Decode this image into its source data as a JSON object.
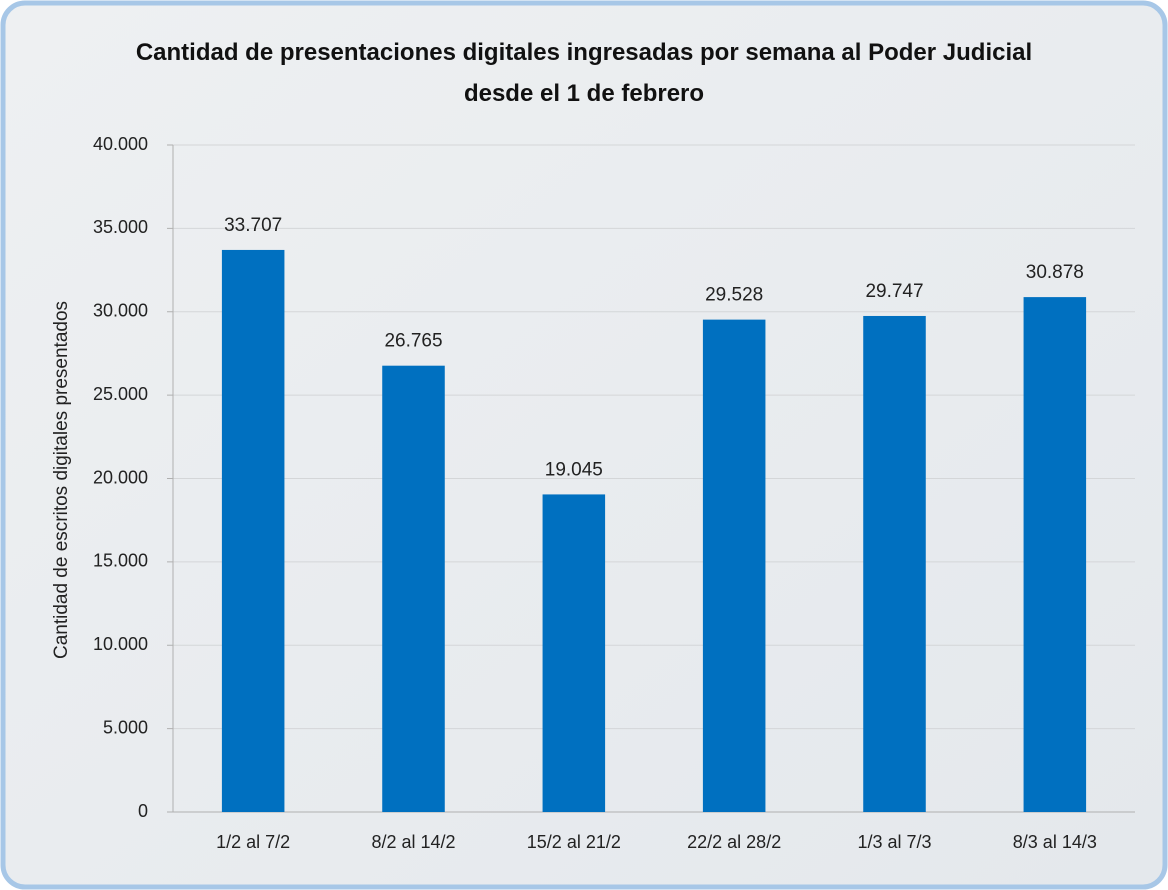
{
  "chart_data": {
    "type": "bar",
    "title": "Cantidad de presentaciones digitales ingresadas por semana al Poder Judicial desde el 1 de febrero",
    "y_label": "Cantidad de escritos digitales presentados",
    "categories": [
      "1/2 al 7/2",
      "8/2 al 14/2",
      "15/2 al 21/2",
      "22/2 al 28/2",
      "1/3 al 7/3",
      "8/3 al 14/3"
    ],
    "values": [
      33707,
      26765,
      19045,
      29528,
      29747,
      30878
    ],
    "value_labels": [
      "33.707",
      "26.765",
      "19.045",
      "29.528",
      "29.747",
      "30.878"
    ],
    "color": "#0070c0",
    "ylim": [
      0,
      40000
    ],
    "yticks": [
      0,
      {
        "value": 5000,
        "label": "5.000"
      },
      {
        "value": 10000,
        "label": "10.000"
      },
      {
        "value": 15000,
        "label": "15.000"
      },
      {
        "value": 20000,
        "label": "20.000"
      },
      {
        "value": 25000,
        "label": "25.000"
      },
      {
        "value": 30000,
        "label": "30.000"
      },
      {
        "value": 35000,
        "label": "35.000"
      },
      {
        "value": 40000,
        "label": "40.000"
      }
    ],
    "grid": true
  }
}
